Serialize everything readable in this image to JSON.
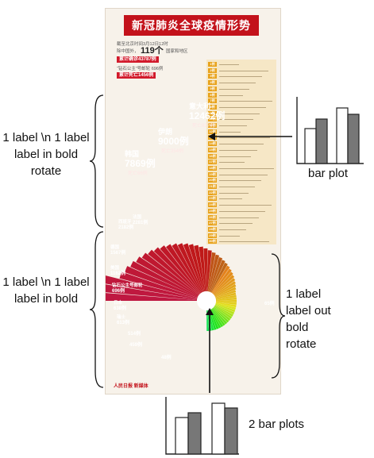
{
  "poster": {
    "title": "新冠肺炎全球疫情形势",
    "stat_line1": "截至北京时间3月12日12时",
    "stat_line2": "除中国外，",
    "stat_count": "119个",
    "stat_line2b": "国家和地区",
    "stat_box1": "累计确诊43787例",
    "stat_line3": "“钻石公主”号邮轮 696例",
    "stat_box2": "累计死亡1456例",
    "brand": "人民日报 新媒体"
  },
  "annotations": {
    "label_top_left": "1 label \\n 1 label label in bold rotate",
    "label_mid_left": "1 label \\n 1 label label in bold",
    "label_right": "1 label label out bold rotate",
    "caption_bar_plot": "bar plot",
    "caption_two_bar_plots": "2 bar plots"
  },
  "chart_data": {
    "type": "pie",
    "description_series": "radial bars (rose chart) of confirmed cases by country",
    "big_labels": [
      {
        "name": "意大利",
        "value": "12462例",
        "deaths": "死亡827例"
      },
      {
        "name": "伊朗",
        "value": "9000例",
        "deaths": "死亡354例"
      },
      {
        "name": "韩国",
        "value": "7869例",
        "deaths": "死亡66例"
      },
      {
        "name": "西班牙",
        "value": "2182例"
      },
      {
        "name": "法国",
        "value": "2281例"
      },
      {
        "name": "德国",
        "value": "1567例"
      },
      {
        "name": "美国",
        "value": "1162例"
      },
      {
        "name": "钻石公主号邮轮",
        "value": "696例"
      },
      {
        "name": "日本",
        "value": "638例"
      },
      {
        "name": "瑞士",
        "value": "613例"
      },
      {
        "name": "",
        "value": "514例"
      },
      {
        "name": "",
        "value": "459例"
      },
      {
        "name": "",
        "value": "48例"
      },
      {
        "name": "",
        "value": "65例"
      }
    ]
  },
  "table_rows": [
    "1例",
    "2例",
    "3例",
    "4例",
    "5例",
    "6例",
    "7例",
    "8例",
    "9例",
    "10例",
    "11例",
    "12例",
    "13例",
    "14例",
    "15例",
    "16例",
    "17例",
    "18例",
    "19例",
    "20例",
    "21例",
    "22例",
    "23例",
    "24例",
    "25例",
    "26例",
    "27例",
    "28例",
    "29例",
    "30例"
  ],
  "colors": {
    "poster_red": "#c3121b",
    "table_bg": "#f6e7c6",
    "rank_orange": "#e8a21a"
  },
  "icons": [
    "bar-plot-icon",
    "two-bar-plots-icon",
    "arrow-icon",
    "brace-icon"
  ]
}
